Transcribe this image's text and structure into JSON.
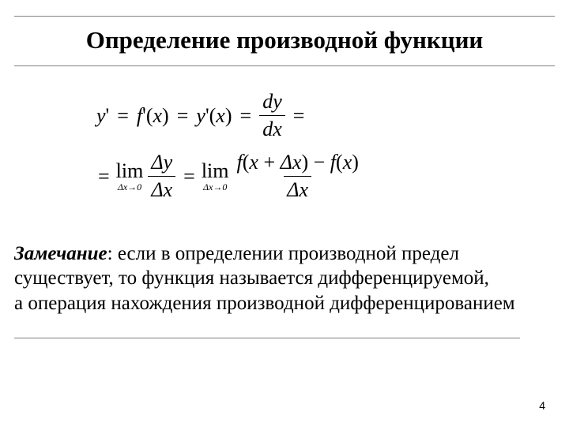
{
  "slide": {
    "title": "Определение производной функции",
    "page_number": "4"
  },
  "formula": {
    "line1": {
      "a": "y",
      "a_prime": "'",
      "b_f": "f",
      "b_prime": "'",
      "b_arg": "x",
      "c_y": "y",
      "c_prime": "'",
      "c_arg": "x",
      "d_num": "dy",
      "d_den": "dx"
    },
    "line2": {
      "lim1_sub": "Δx→0",
      "frac1_num": "Δy",
      "frac1_den": "Δx",
      "lim2_sub": "Δx→0",
      "frac2_num_f1": "f",
      "frac2_num_arg1a": "x",
      "frac2_num_plus": "+",
      "frac2_num_arg1b": "Δx",
      "frac2_num_minus": "−",
      "frac2_num_f2": "f",
      "frac2_num_arg2": "x",
      "frac2_den": "Δx"
    }
  },
  "note": {
    "label": "Замечание",
    "text": ": если в определении производной предел существует, то функция называется дифференцируемой, а операция нахождения производной дифференцированием"
  },
  "style": {
    "title_color": "#000000",
    "rule_color": "#808080",
    "text_color": "#000000",
    "background": "#ffffff"
  }
}
